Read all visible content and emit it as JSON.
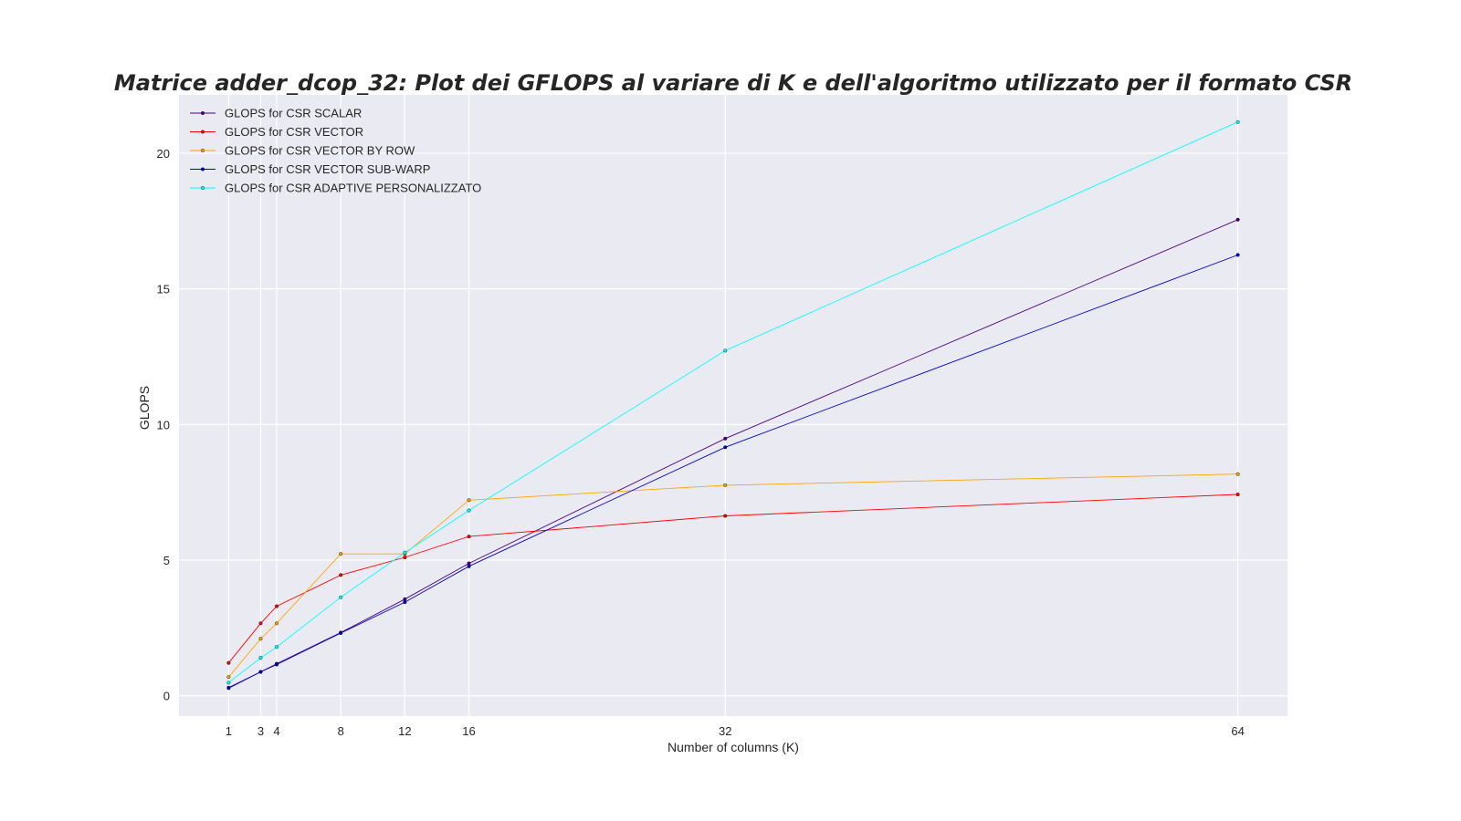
{
  "chart_data": {
    "type": "line",
    "title": "Matrice adder_dcop_32: Plot dei GFLOPS al variare di K e dell'algoritmo utilizzato per il formato CSR",
    "xlabel": "Number of columns (K)",
    "ylabel": "GLOPS",
    "x": [
      1,
      3,
      4,
      8,
      12,
      16,
      32,
      64
    ],
    "xticks": [
      "1",
      "3",
      "4",
      "8",
      "12",
      "16",
      "32",
      "64"
    ],
    "yticks": [
      "0",
      "5",
      "10",
      "15",
      "20"
    ],
    "xlim": [
      -2.1,
      67.1
    ],
    "ylim": [
      -0.75,
      22.15
    ],
    "grid": true,
    "legend_position": "upper-left",
    "background": "#eaeaf2",
    "series": [
      {
        "name": "GLOPS for CSR SCALAR",
        "color": "#4b0082",
        "values": [
          0.3,
          0.88,
          1.18,
          2.33,
          3.56,
          4.88,
          9.48,
          17.55
        ]
      },
      {
        "name": "GLOPS for CSR VECTOR",
        "color": "#ff0000",
        "values": [
          1.21,
          2.67,
          3.3,
          4.45,
          5.1,
          5.87,
          6.63,
          7.42
        ]
      },
      {
        "name": "GLOPS for CSR VECTOR BY ROW",
        "color": "#ffa500",
        "values": [
          0.69,
          2.1,
          2.67,
          5.23,
          5.23,
          7.21,
          7.76,
          8.17
        ]
      },
      {
        "name": "GLOPS for CSR VECTOR SUB-WARP",
        "color": "#0000cd",
        "values": [
          0.28,
          0.88,
          1.15,
          2.31,
          3.45,
          4.77,
          9.16,
          16.25
        ]
      },
      {
        "name": "GLOPS for CSR ADAPTIVE PERSONALIZZATO",
        "color": "#00ffff",
        "values": [
          0.48,
          1.4,
          1.8,
          3.63,
          5.28,
          6.83,
          12.72,
          21.15
        ]
      }
    ]
  }
}
